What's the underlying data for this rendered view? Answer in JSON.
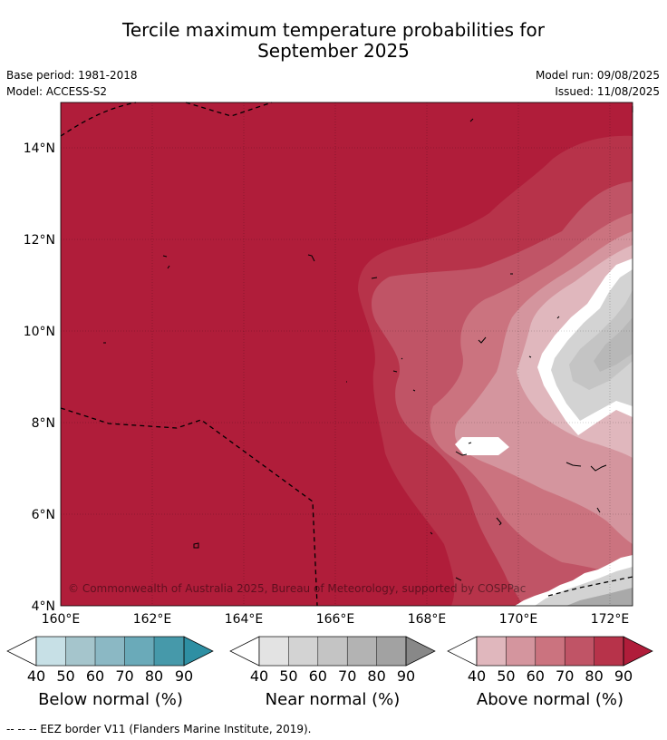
{
  "title_line1": "Tercile maximum temperature probabilities for",
  "title_line2": "September 2025",
  "base_period": "Base period: 1981-2018",
  "model": "Model: ACCESS-S2",
  "model_run": "Model run: 09/08/2025",
  "issued": "Issued: 11/08/2025",
  "copyright": "© Commonwealth of Australia 2025, Bureau of Meteorology, supported by COSPPac",
  "lat_labels": [
    "14°N",
    "12°N",
    "10°N",
    "8°N",
    "6°N",
    "4°N"
  ],
  "lon_labels": [
    "160°E",
    "162°E",
    "164°E",
    "166°E",
    "168°E",
    "170°E",
    "172°E"
  ],
  "colors": {
    "above": [
      "#e0b7bd",
      "#d4959e",
      "#cb737f",
      "#c05466",
      "#b7334a",
      "#b01d3a"
    ],
    "near": [
      "#e3e3e3",
      "#d3d3d3",
      "#c4c4c4",
      "#b3b3b3",
      "#a2a2a2",
      "#888888"
    ],
    "below": [
      "#c7e0e6",
      "#a5c5cc",
      "#8bb8c4",
      "#6aaab9",
      "#4699aa",
      "#2e8fa3"
    ]
  },
  "colorbars": [
    {
      "label": "Below normal (%)",
      "ticks": [
        "40",
        "50",
        "60",
        "70",
        "80",
        "90"
      ]
    },
    {
      "label": "Near normal (%)",
      "ticks": [
        "40",
        "50",
        "60",
        "70",
        "80",
        "90"
      ]
    },
    {
      "label": "Above normal (%)",
      "ticks": [
        "40",
        "50",
        "60",
        "70",
        "80",
        "90"
      ]
    }
  ],
  "footer": "-- -- -- EEZ border V11 (Flanders Marine Institute, 2019)."
}
